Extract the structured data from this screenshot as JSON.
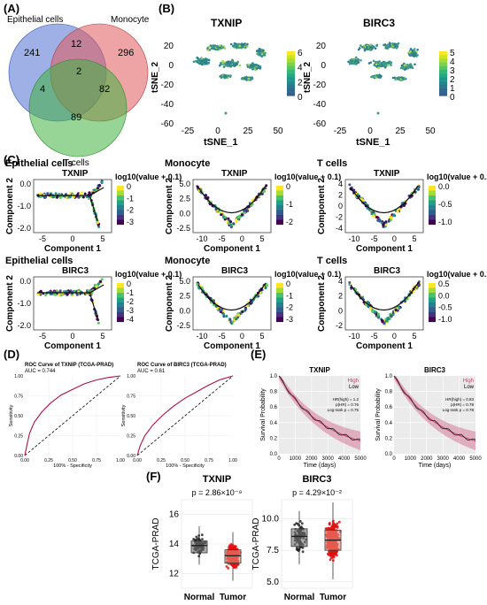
{
  "panel_labels": [
    "(A)",
    "(B)",
    "(C)",
    "(D)",
    "(E)",
    "(F)"
  ],
  "colors": {
    "epithelial": "#4f6fd1",
    "monocyte": "#e05a5a",
    "tcells": "#3fb23f",
    "tsne_dot": "#3d9a8a",
    "survival": "#c7396a",
    "roc": "#b0103e",
    "box_normal": "#222222",
    "box_tumor": "#e01010"
  },
  "venn": {
    "labels": {
      "epithelial": "Epithelial cells",
      "monocyte": "Monocyte",
      "tcells": "T cells"
    },
    "counts": {
      "e_only": "241",
      "m_only": "296",
      "t_only": "89",
      "em": "12",
      "et": "4",
      "mt": "82",
      "emt": "2"
    }
  },
  "tsne": {
    "xlabel": "tSNE_1",
    "ylabel": "tSNE_2",
    "xticks": [
      "-25",
      "0",
      "25",
      "50"
    ],
    "yticks": [
      "-60",
      "-40",
      "-20",
      "0",
      "20"
    ],
    "plots": [
      {
        "title": "TXNIP",
        "legend": [
          "6",
          "4",
          "2",
          "0"
        ]
      },
      {
        "title": "BIRC3",
        "legend": [
          "5",
          "4",
          "3",
          "2",
          "1",
          "0"
        ]
      }
    ]
  },
  "pseudotime": {
    "xlabel": "Component 1",
    "ylabel": "Component 2",
    "legend_title": "log10(value + 0.1)",
    "plots": [
      {
        "cell": "Epithelial cells",
        "gene": "TXNIP",
        "xticks": [
          "-5",
          "0",
          "5"
        ],
        "yticks": [
          "0.0",
          "-1.0",
          "-2.0"
        ],
        "legend": [
          "0",
          "-1",
          "-2",
          "-3"
        ]
      },
      {
        "cell": "Monocyte",
        "gene": "TXNIP",
        "xticks": [
          "-10",
          "-5",
          "0",
          "5"
        ],
        "yticks": [
          "5.0",
          "2.5",
          "0.0",
          "-2.5"
        ],
        "legend": [
          "0",
          "-1",
          "-2"
        ]
      },
      {
        "cell": "T cells",
        "gene": "TXNIP",
        "xticks": [
          "-10",
          "-5",
          "0",
          "5"
        ],
        "yticks": [
          "4",
          "2",
          "0",
          "-2",
          "-4"
        ],
        "legend": [
          "0.0",
          "-0.5",
          "-1.0"
        ]
      },
      {
        "cell": "Epithelial cells",
        "gene": "BIRC3",
        "xticks": [
          "-5",
          "0",
          "5"
        ],
        "yticks": [
          "0.0",
          "-1.0",
          "-2.0"
        ],
        "legend": [
          "0",
          "-1",
          "-2",
          "-3",
          "-4"
        ]
      },
      {
        "cell": "Monocyte",
        "gene": "BIRC3",
        "xticks": [
          "-10",
          "-5",
          "0",
          "5"
        ],
        "yticks": [
          "5.0",
          "2.5",
          "0.0",
          "-2.5"
        ],
        "legend": [
          "0",
          "-1",
          "-2",
          "-3"
        ]
      },
      {
        "cell": "T cells",
        "gene": "BIRC3",
        "xticks": [
          "-10",
          "-5",
          "0",
          "5"
        ],
        "yticks": [
          "4",
          "2",
          "0",
          "-2"
        ],
        "legend": [
          "0.5",
          "0.0",
          "-0.5",
          "-1.0"
        ]
      }
    ]
  },
  "roc": {
    "xlabel": "100% - Specificity",
    "ylabel": "Sensitivity",
    "ticks": [
      "0.00",
      "0.25",
      "0.50",
      "0.75",
      "1.00"
    ],
    "plots": [
      {
        "title": "ROC Curve of TXNIP (TCGA-PRAD)",
        "auc": "AUC = 0.744"
      },
      {
        "title": "ROC Curve of BIRC3 (TCGA-PRAD)",
        "auc": "AUC = 0.61"
      }
    ]
  },
  "survival": {
    "xlabel": "Time (days)",
    "ylabel": "Survival Probability",
    "xticks": [
      "0",
      "1000",
      "2000",
      "3000",
      "4000",
      "5000"
    ],
    "yticks": [
      "0.0",
      "0.2",
      "0.4",
      "0.6",
      "0.8",
      "1.0"
    ],
    "legend_high": "High",
    "legend_low": "Low",
    "plots": [
      {
        "title": "TXNIP",
        "stats": [
          "HR(high) = 1.2",
          "p(HR) = 0.76",
          "Log-rank p = 0.75"
        ]
      },
      {
        "title": "BIRC3",
        "stats": [
          "HR(high) = 0.83",
          "p(HR) = 0.78",
          "Log-rank p = 0.78"
        ]
      }
    ]
  },
  "boxplots": {
    "ylabel": "TCGA-PRAD",
    "groups": [
      "Normal",
      "Tumor"
    ],
    "plots": [
      {
        "title": "TXNIP",
        "pvalue": "p = 2.86×10⁻⁹",
        "yticks": [
          "16",
          "14",
          "12"
        ],
        "ylim": [
          11,
          17
        ],
        "normal": {
          "q1": 13.4,
          "median": 13.9,
          "q3": 14.2,
          "min": 12.6,
          "max": 15.2
        },
        "tumor": {
          "q1": 12.7,
          "median": 13.2,
          "q3": 13.6,
          "min": 11.5,
          "max": 14.8
        }
      },
      {
        "title": "BIRC3",
        "pvalue": "p = 4.29×10⁻²",
        "yticks": [
          "10.0",
          "7.5",
          "5.0"
        ],
        "ylim": [
          4.5,
          11.5
        ],
        "normal": {
          "q1": 7.8,
          "median": 8.6,
          "q3": 9.2,
          "min": 6.4,
          "max": 10.6
        },
        "tumor": {
          "q1": 7.5,
          "median": 8.3,
          "q3": 9.1,
          "min": 5.2,
          "max": 11.3
        }
      }
    ]
  }
}
